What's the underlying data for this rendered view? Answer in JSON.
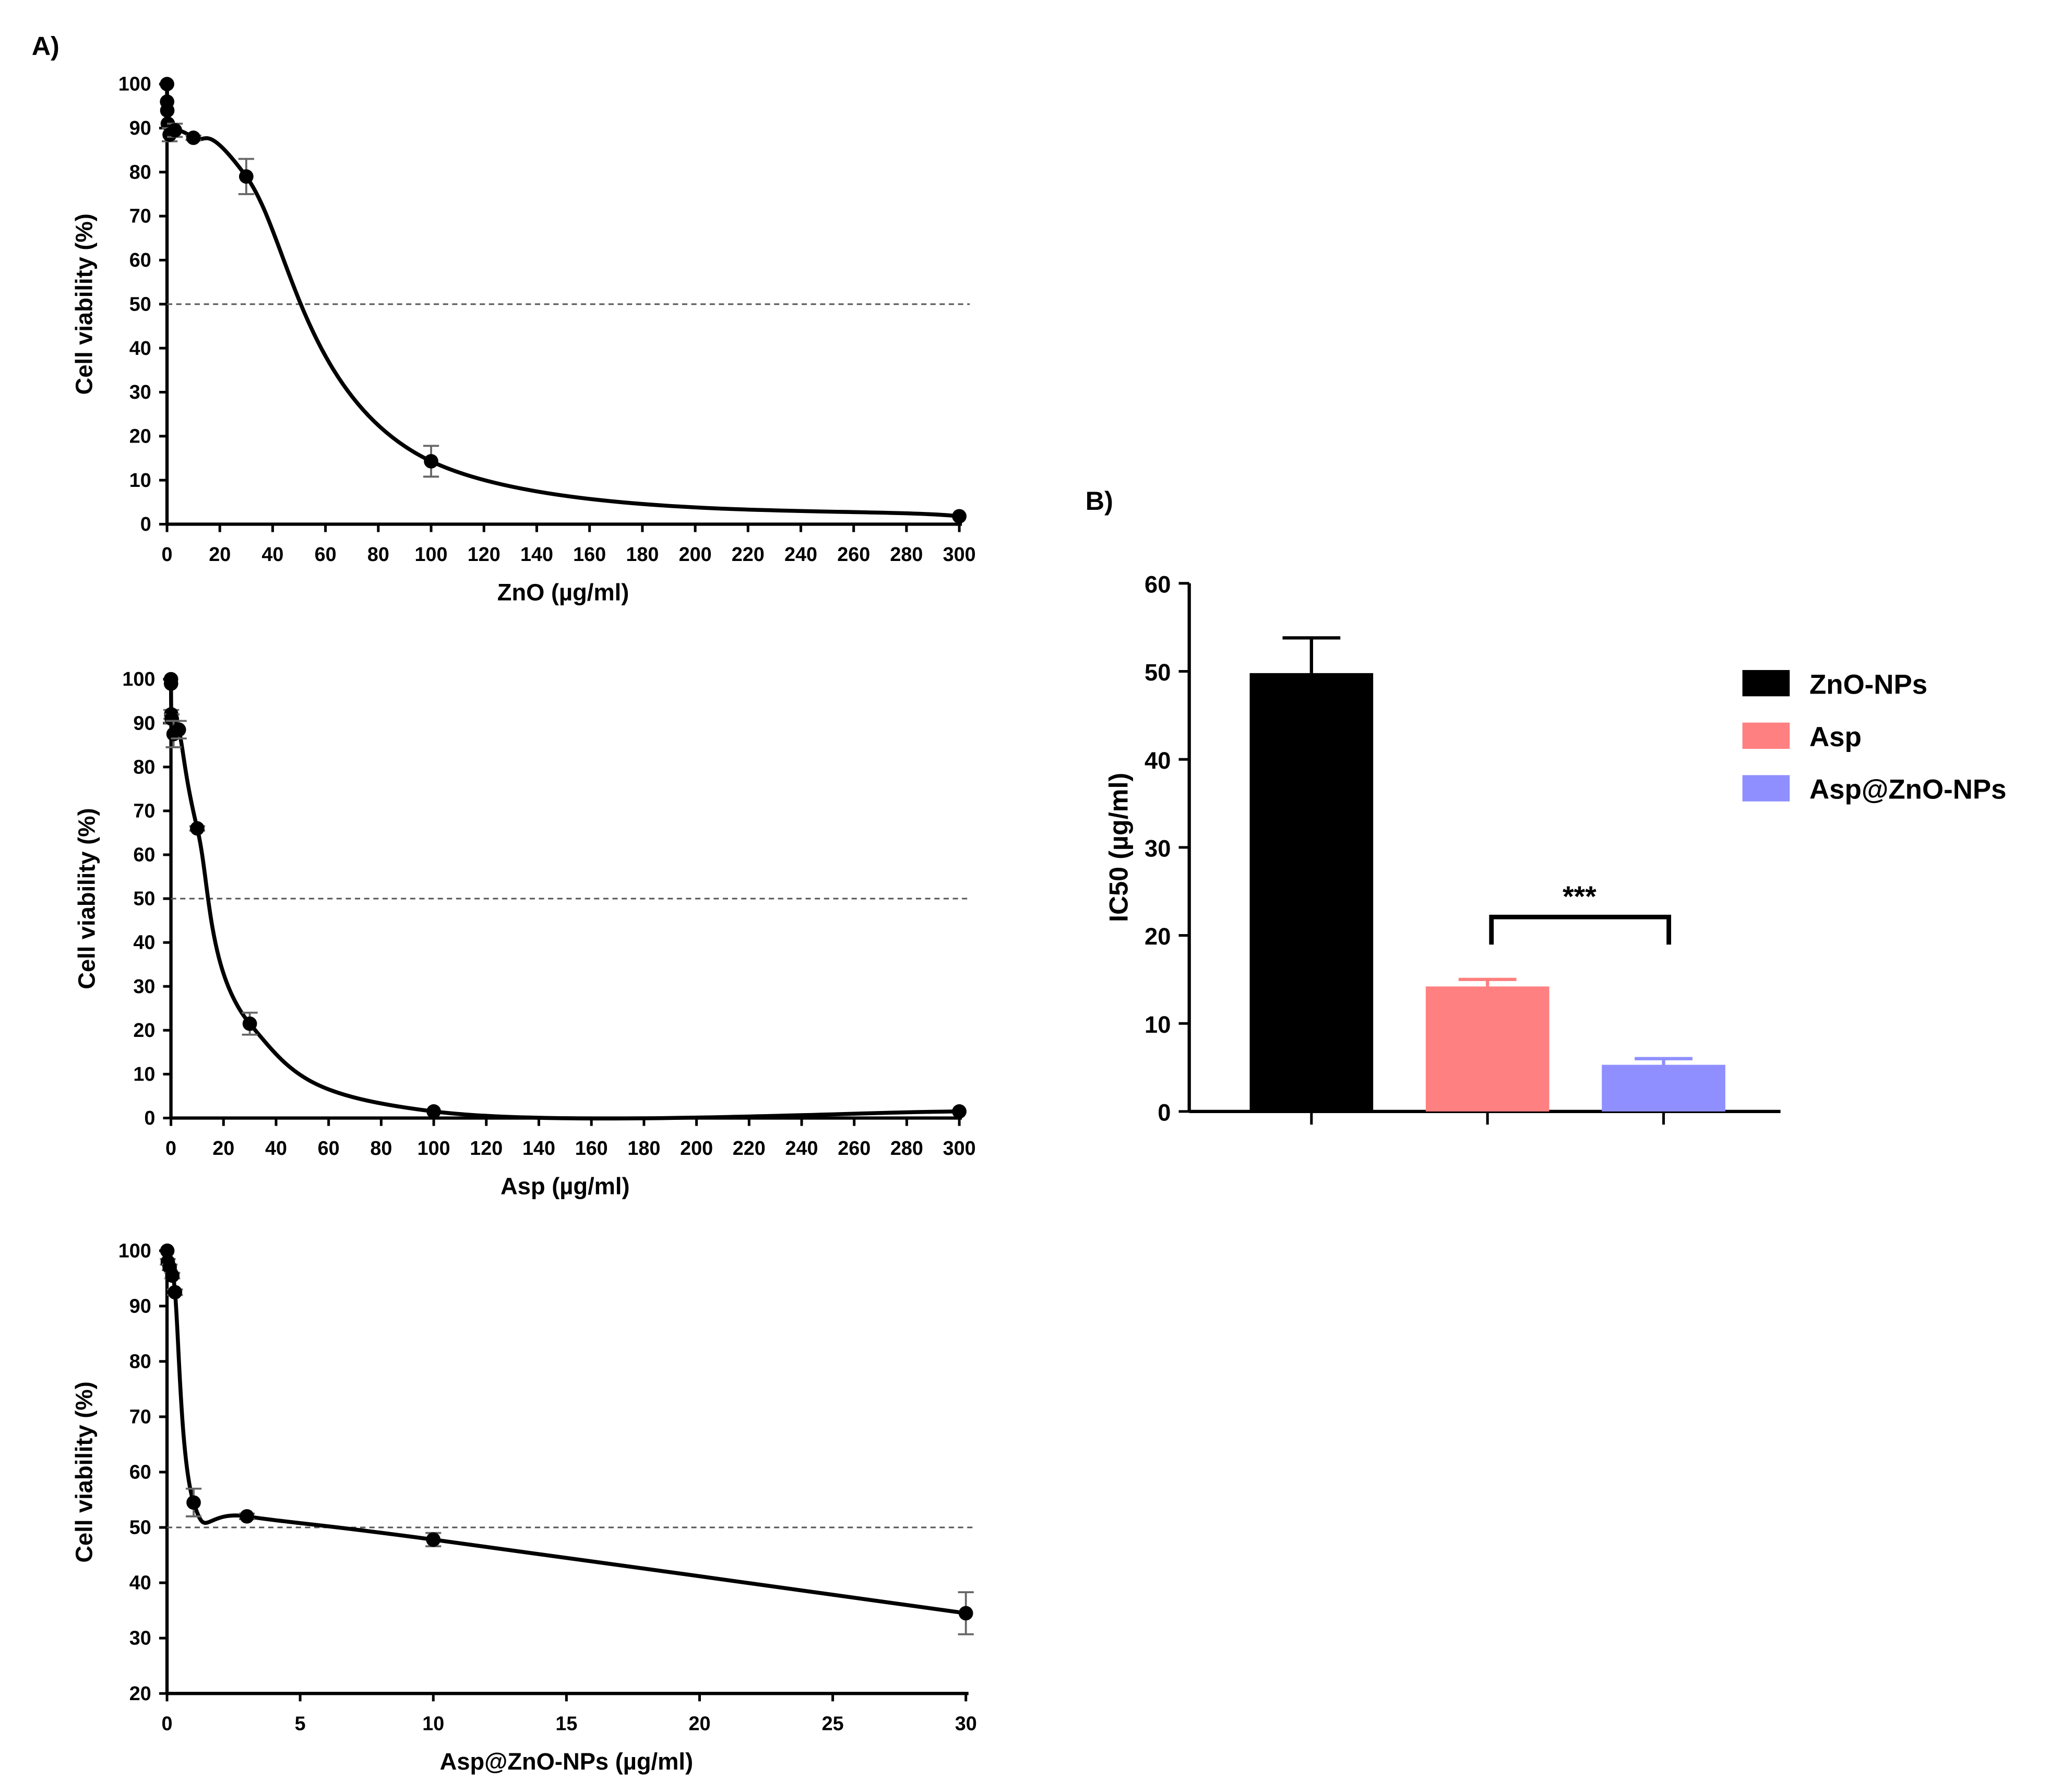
{
  "panel_labels": {
    "a": "A)",
    "b": "B)"
  },
  "chart_data": [
    {
      "type": "line",
      "panel": "A",
      "title": "",
      "xlabel": "ZnO (µg/ml)",
      "ylabel": "Cell viability (%)",
      "xlim": [
        0,
        300
      ],
      "ylim": [
        0,
        100
      ],
      "xticks": [
        0,
        20,
        40,
        60,
        80,
        100,
        120,
        140,
        160,
        180,
        200,
        220,
        240,
        260,
        280,
        300
      ],
      "yticks": [
        0,
        10,
        20,
        30,
        40,
        50,
        60,
        70,
        80,
        90,
        100
      ],
      "reference_line": 50,
      "x": [
        0.01,
        0.03,
        0.1,
        0.3,
        1,
        3,
        10,
        30,
        100,
        300
      ],
      "y": [
        100,
        96,
        94,
        91,
        88.5,
        89.5,
        87.8,
        79,
        14.3,
        1.8
      ],
      "error": [
        0,
        0,
        0,
        0,
        1.5,
        1.5,
        0.5,
        4,
        3.5,
        0.3
      ]
    },
    {
      "type": "line",
      "panel": "A",
      "title": "",
      "xlabel": "Asp (µg/ml)",
      "ylabel": "Cell viability (%)",
      "xlim": [
        0,
        300
      ],
      "ylim": [
        0,
        100
      ],
      "xticks": [
        0,
        20,
        40,
        60,
        80,
        100,
        120,
        140,
        160,
        180,
        200,
        220,
        240,
        260,
        280,
        300
      ],
      "yticks": [
        0,
        10,
        20,
        30,
        40,
        50,
        60,
        70,
        80,
        90,
        100
      ],
      "reference_line": 50,
      "x": [
        0.01,
        0.03,
        0.1,
        0.3,
        1,
        3,
        10,
        30,
        100,
        300
      ],
      "y": [
        100,
        99,
        92,
        91,
        87.5,
        88.5,
        66,
        21.5,
        1.5,
        1.5
      ],
      "error": [
        0,
        0,
        1,
        1,
        3,
        2,
        0.5,
        2.5,
        0.3,
        0.3
      ]
    },
    {
      "type": "line",
      "panel": "A",
      "title": "",
      "xlabel": "Asp@ZnO-NPs (µg/ml)",
      "ylabel": "Cell viability (%)",
      "xlim": [
        0,
        30
      ],
      "ylim": [
        20,
        100
      ],
      "xticks": [
        0,
        5,
        10,
        15,
        20,
        25,
        30
      ],
      "yticks": [
        20,
        30,
        40,
        50,
        60,
        70,
        80,
        90,
        100
      ],
      "reference_line": 50,
      "x": [
        0.01,
        0.03,
        0.1,
        0.2,
        0.3,
        1,
        3,
        10,
        30
      ],
      "y": [
        100,
        98,
        97,
        95.5,
        92.5,
        54.5,
        52,
        47.8,
        34.5
      ],
      "error": [
        0,
        0.5,
        0.5,
        0.5,
        0.5,
        2.5,
        0.5,
        1.2,
        3.8
      ]
    },
    {
      "type": "bar",
      "panel": "B",
      "title": "",
      "xlabel": "",
      "ylabel": "IC50 (µg/ml)",
      "ylim": [
        0,
        60
      ],
      "yticks": [
        0,
        10,
        20,
        30,
        40,
        50,
        60
      ],
      "categories": [
        "ZnO-NPs",
        "Asp",
        "Asp@ZnO-NPs"
      ],
      "values": [
        49.8,
        14.2,
        5.3
      ],
      "error": [
        4.0,
        0.8,
        0.7
      ],
      "colors": [
        "#000000",
        "#ff8080",
        "#8f8fff"
      ],
      "legend": [
        "ZnO-NPs",
        "Asp",
        "Asp@ZnO-NPs"
      ],
      "legend_position": "right",
      "annotation": {
        "text": "***",
        "between": [
          "Asp",
          "Asp@ZnO-NPs"
        ]
      }
    }
  ]
}
